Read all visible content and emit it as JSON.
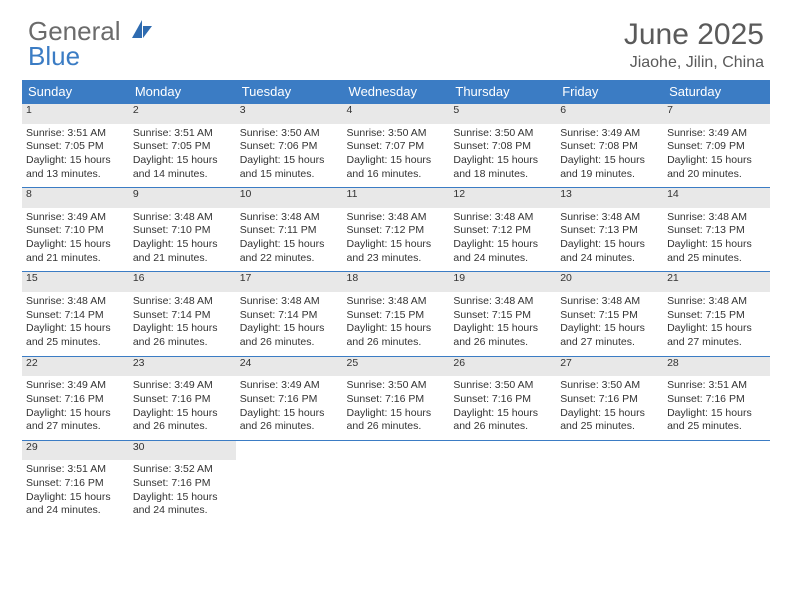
{
  "logo": {
    "part1": "General",
    "part2": "Blue"
  },
  "title": "June 2025",
  "location": "Jiaohe, Jilin, China",
  "header_bg": "#3b7cc4",
  "daynum_bg": "#e8e8e8",
  "weekdays": [
    "Sunday",
    "Monday",
    "Tuesday",
    "Wednesday",
    "Thursday",
    "Friday",
    "Saturday"
  ],
  "weeks": [
    [
      {
        "n": "1",
        "sr": "3:51 AM",
        "ss": "7:05 PM",
        "d": "15 hours and 13 minutes."
      },
      {
        "n": "2",
        "sr": "3:51 AM",
        "ss": "7:05 PM",
        "d": "15 hours and 14 minutes."
      },
      {
        "n": "3",
        "sr": "3:50 AM",
        "ss": "7:06 PM",
        "d": "15 hours and 15 minutes."
      },
      {
        "n": "4",
        "sr": "3:50 AM",
        "ss": "7:07 PM",
        "d": "15 hours and 16 minutes."
      },
      {
        "n": "5",
        "sr": "3:50 AM",
        "ss": "7:08 PM",
        "d": "15 hours and 18 minutes."
      },
      {
        "n": "6",
        "sr": "3:49 AM",
        "ss": "7:08 PM",
        "d": "15 hours and 19 minutes."
      },
      {
        "n": "7",
        "sr": "3:49 AM",
        "ss": "7:09 PM",
        "d": "15 hours and 20 minutes."
      }
    ],
    [
      {
        "n": "8",
        "sr": "3:49 AM",
        "ss": "7:10 PM",
        "d": "15 hours and 21 minutes."
      },
      {
        "n": "9",
        "sr": "3:48 AM",
        "ss": "7:10 PM",
        "d": "15 hours and 21 minutes."
      },
      {
        "n": "10",
        "sr": "3:48 AM",
        "ss": "7:11 PM",
        "d": "15 hours and 22 minutes."
      },
      {
        "n": "11",
        "sr": "3:48 AM",
        "ss": "7:12 PM",
        "d": "15 hours and 23 minutes."
      },
      {
        "n": "12",
        "sr": "3:48 AM",
        "ss": "7:12 PM",
        "d": "15 hours and 24 minutes."
      },
      {
        "n": "13",
        "sr": "3:48 AM",
        "ss": "7:13 PM",
        "d": "15 hours and 24 minutes."
      },
      {
        "n": "14",
        "sr": "3:48 AM",
        "ss": "7:13 PM",
        "d": "15 hours and 25 minutes."
      }
    ],
    [
      {
        "n": "15",
        "sr": "3:48 AM",
        "ss": "7:14 PM",
        "d": "15 hours and 25 minutes."
      },
      {
        "n": "16",
        "sr": "3:48 AM",
        "ss": "7:14 PM",
        "d": "15 hours and 26 minutes."
      },
      {
        "n": "17",
        "sr": "3:48 AM",
        "ss": "7:14 PM",
        "d": "15 hours and 26 minutes."
      },
      {
        "n": "18",
        "sr": "3:48 AM",
        "ss": "7:15 PM",
        "d": "15 hours and 26 minutes."
      },
      {
        "n": "19",
        "sr": "3:48 AM",
        "ss": "7:15 PM",
        "d": "15 hours and 26 minutes."
      },
      {
        "n": "20",
        "sr": "3:48 AM",
        "ss": "7:15 PM",
        "d": "15 hours and 27 minutes."
      },
      {
        "n": "21",
        "sr": "3:48 AM",
        "ss": "7:15 PM",
        "d": "15 hours and 27 minutes."
      }
    ],
    [
      {
        "n": "22",
        "sr": "3:49 AM",
        "ss": "7:16 PM",
        "d": "15 hours and 27 minutes."
      },
      {
        "n": "23",
        "sr": "3:49 AM",
        "ss": "7:16 PM",
        "d": "15 hours and 26 minutes."
      },
      {
        "n": "24",
        "sr": "3:49 AM",
        "ss": "7:16 PM",
        "d": "15 hours and 26 minutes."
      },
      {
        "n": "25",
        "sr": "3:50 AM",
        "ss": "7:16 PM",
        "d": "15 hours and 26 minutes."
      },
      {
        "n": "26",
        "sr": "3:50 AM",
        "ss": "7:16 PM",
        "d": "15 hours and 26 minutes."
      },
      {
        "n": "27",
        "sr": "3:50 AM",
        "ss": "7:16 PM",
        "d": "15 hours and 25 minutes."
      },
      {
        "n": "28",
        "sr": "3:51 AM",
        "ss": "7:16 PM",
        "d": "15 hours and 25 minutes."
      }
    ],
    [
      {
        "n": "29",
        "sr": "3:51 AM",
        "ss": "7:16 PM",
        "d": "15 hours and 24 minutes."
      },
      {
        "n": "30",
        "sr": "3:52 AM",
        "ss": "7:16 PM",
        "d": "15 hours and 24 minutes."
      },
      null,
      null,
      null,
      null,
      null
    ]
  ],
  "labels": {
    "sunrise": "Sunrise: ",
    "sunset": "Sunset: ",
    "daylight": "Daylight: "
  }
}
